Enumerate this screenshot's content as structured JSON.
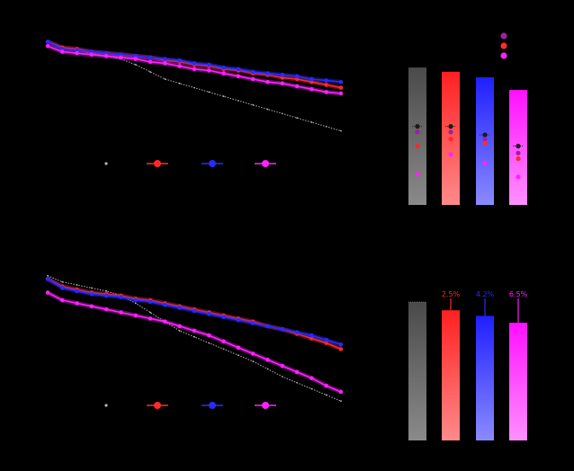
{
  "colors": {
    "background": "#000000",
    "gray": "#b3b3b3",
    "red": "#ff2a2a",
    "blue": "#2a2aff",
    "magenta": "#ff22ff",
    "purple": "#a020a0",
    "darkred": "#d0003a"
  },
  "chart_data": [
    {
      "type": "line",
      "panel": "top-left",
      "title": "",
      "xlabel": "",
      "ylabel": "",
      "xlim": [
        0,
        200
      ],
      "ylim": [
        0,
        1
      ],
      "grid": false,
      "x": [
        0,
        10,
        20,
        30,
        40,
        50,
        60,
        70,
        80,
        90,
        100,
        110,
        120,
        130,
        140,
        150,
        160,
        170,
        180,
        190,
        200
      ],
      "series": [
        {
          "key": "gray",
          "values": [
            0.96,
            0.92,
            0.9,
            0.88,
            0.86,
            0.84,
            0.8,
            0.75,
            0.7,
            0.67,
            0.64,
            0.61,
            0.58,
            0.55,
            0.52,
            0.49,
            0.46,
            0.43,
            0.4,
            0.37,
            0.34
          ]
        },
        {
          "key": "red",
          "values": [
            0.96,
            0.92,
            0.91,
            0.89,
            0.88,
            0.87,
            0.86,
            0.85,
            0.83,
            0.82,
            0.8,
            0.79,
            0.77,
            0.76,
            0.74,
            0.73,
            0.71,
            0.7,
            0.68,
            0.66,
            0.64
          ]
        },
        {
          "key": "blue",
          "values": [
            0.96,
            0.91,
            0.9,
            0.89,
            0.88,
            0.87,
            0.86,
            0.85,
            0.84,
            0.83,
            0.81,
            0.8,
            0.78,
            0.77,
            0.75,
            0.74,
            0.73,
            0.72,
            0.7,
            0.69,
            0.68
          ]
        },
        {
          "key": "magenta",
          "values": [
            0.93,
            0.89,
            0.88,
            0.87,
            0.86,
            0.85,
            0.84,
            0.82,
            0.81,
            0.79,
            0.77,
            0.76,
            0.74,
            0.72,
            0.7,
            0.68,
            0.67,
            0.65,
            0.63,
            0.61,
            0.6
          ]
        }
      ]
    },
    {
      "type": "bar",
      "panel": "top-right",
      "title": "",
      "ylim": [
        0,
        1
      ],
      "grid": false,
      "categories": [
        "gray",
        "red",
        "blue",
        "magenta"
      ],
      "values": [
        0.98,
        0.95,
        0.91,
        0.82
      ],
      "dots": [
        [
          0.56,
          0.52,
          0.42,
          0.22
        ],
        [
          0.56,
          0.52,
          0.47,
          0.36
        ],
        [
          0.5,
          0.47,
          0.44,
          0.3
        ],
        [
          0.42,
          0.37,
          0.33,
          0.2
        ]
      ]
    },
    {
      "type": "line",
      "panel": "bottom-left",
      "title": "",
      "xlabel": "",
      "ylabel": "",
      "xlim": [
        0,
        200
      ],
      "ylim": [
        0,
        1
      ],
      "grid": false,
      "x": [
        0,
        10,
        20,
        30,
        40,
        50,
        60,
        70,
        80,
        90,
        100,
        110,
        120,
        130,
        140,
        150,
        160,
        170,
        180,
        190,
        200
      ],
      "series": [
        {
          "key": "gray",
          "values": [
            0.96,
            0.92,
            0.9,
            0.88,
            0.86,
            0.83,
            0.78,
            0.72,
            0.66,
            0.6,
            0.56,
            0.52,
            0.48,
            0.44,
            0.4,
            0.35,
            0.3,
            0.26,
            0.22,
            0.18,
            0.14
          ]
        },
        {
          "key": "red",
          "values": [
            0.94,
            0.89,
            0.87,
            0.85,
            0.84,
            0.83,
            0.81,
            0.8,
            0.78,
            0.76,
            0.74,
            0.72,
            0.7,
            0.68,
            0.66,
            0.63,
            0.61,
            0.58,
            0.55,
            0.52,
            0.48
          ]
        },
        {
          "key": "blue",
          "values": [
            0.94,
            0.88,
            0.86,
            0.84,
            0.83,
            0.82,
            0.8,
            0.79,
            0.77,
            0.75,
            0.73,
            0.71,
            0.69,
            0.67,
            0.65,
            0.63,
            0.61,
            0.59,
            0.57,
            0.54,
            0.51
          ]
        },
        {
          "key": "magenta",
          "values": [
            0.85,
            0.8,
            0.78,
            0.76,
            0.74,
            0.72,
            0.7,
            0.68,
            0.66,
            0.63,
            0.6,
            0.57,
            0.53,
            0.49,
            0.45,
            0.41,
            0.37,
            0.33,
            0.29,
            0.24,
            0.2
          ]
        }
      ]
    },
    {
      "type": "bar",
      "panel": "bottom-right",
      "title": "",
      "ylim": [
        0,
        1
      ],
      "grid": false,
      "categories": [
        "gray",
        "red",
        "blue",
        "magenta"
      ],
      "values": [
        1.0,
        0.94,
        0.9,
        0.85
      ],
      "annotations": [
        "",
        "2.5%",
        "4.2%",
        "6.5%"
      ]
    }
  ]
}
